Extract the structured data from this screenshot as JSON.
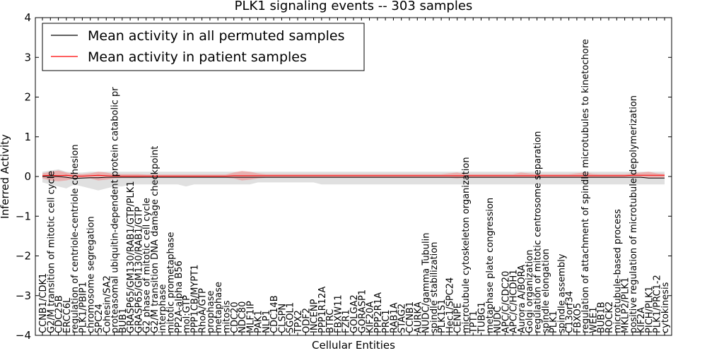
{
  "chart_data": {
    "type": "line",
    "title": "PLK1 signaling events -- 303 samples",
    "xlabel": "Cellular Entities",
    "ylabel": "Inferred Activity",
    "ylim": [
      -4,
      4
    ],
    "yticks": [
      -4,
      -3,
      -2,
      -1,
      0,
      1,
      2,
      3,
      4
    ],
    "grid": false,
    "legend_position": "top-left",
    "categories": [
      "CCNB1/CDK1",
      "G2/M transition of mitotic cell cycle",
      "CDC25B",
      "ERCC6L",
      "regulation of centriole-centriole cohesion",
      "PLK1/PBIP1",
      "chromosome segregation",
      "SPC24",
      "Cohesin/SA2",
      "proteasomal ubiquitin-dependent protein catabolic pr",
      "BUB1",
      "GRASP65/GM130/RAB1/GTP/PLK1",
      "GRASP65/GM130/RAB1/GTP",
      "G2 phase of mitotic cell cycle",
      "G2/M transition DNA damage checkpoint",
      "interphase",
      "mitotic prometaphase",
      "PP2A-alpha B56",
      "mol:GTP",
      "PPP1CB/MYPT1",
      "RhoA/GTP",
      "prophase",
      "metaphase",
      "mitosis",
      "CDC20",
      "NDC80",
      "MLF1IP",
      "PAK1",
      "NLP1",
      "CDC14B",
      "CLSPN",
      "SGOL1",
      "TPX2",
      "ODF2",
      "INCENP",
      "PPP1R12A",
      "BTRC",
      "FBXW11",
      "FZR1",
      "GOLGA2",
      "GORASP1",
      "KIF20A",
      "PPP2R1A",
      "PRC1",
      "RAB1A",
      "STAG2",
      "CCNB1",
      "AURKA",
      "NUDC/gamma Tubulin",
      "spindle stabilization",
      "PLK1S1",
      "Hec1/SPC24",
      "CENPE",
      "microtubule cytoskeleton organization",
      "TPT1",
      "TUBG1",
      "metaphase plate congression",
      "NUDC",
      "APC/C/CDC20",
      "APC/C/HCDH1",
      "Aurora A/BORA",
      "Golgi organization",
      "regulation of mitotic centrosome separation",
      "spindle elongation",
      "PLK1",
      "spindle assembly",
      "C13orf34",
      "FBXO5",
      "regulation of attachment of spindle microtubules to kinetochore",
      "WEE1",
      "BUB1B",
      "ROCK2",
      "microtubule-based process",
      "MKLP2/PLK1",
      "positive regulation of microtubule depolymerization",
      "KIF2A",
      "PICH/PLK1",
      "PLK1/PRC1-2",
      "cytokinesis"
    ],
    "series": [
      {
        "name": "Mean activity in all permuted samples",
        "color": "#000000",
        "values": [
          0,
          0,
          0,
          -0.02,
          -0.05,
          -0.04,
          -0.03,
          -0.03,
          -0.02,
          -0.02,
          -0.02,
          -0.02,
          -0.02,
          -0.02,
          -0.02,
          -0.02,
          -0.02,
          -0.02,
          -0.02,
          -0.02,
          -0.02,
          -0.02,
          -0.02,
          -0.02,
          -0.02,
          -0.02,
          -0.02,
          -0.02,
          -0.02,
          -0.02,
          -0.02,
          -0.02,
          -0.02,
          -0.02,
          -0.02,
          -0.02,
          -0.02,
          -0.02,
          -0.02,
          -0.02,
          -0.02,
          -0.02,
          -0.02,
          -0.02,
          -0.02,
          -0.02,
          -0.02,
          -0.02,
          -0.02,
          -0.02,
          -0.02,
          -0.02,
          -0.02,
          -0.02,
          -0.02,
          -0.02,
          -0.02,
          -0.02,
          -0.02,
          -0.02,
          -0.02,
          -0.02,
          -0.02,
          -0.02,
          -0.02,
          -0.02,
          -0.02,
          -0.02,
          -0.02,
          -0.02,
          -0.02,
          -0.02,
          -0.02,
          -0.02,
          -0.02,
          -0.02,
          -0.04,
          -0.04,
          -0.04
        ],
        "lower": [
          -0.15,
          -0.2,
          -0.25,
          -0.3,
          -0.2,
          -0.25,
          -0.3,
          -0.35,
          -0.3,
          -0.25,
          -0.25,
          -0.2,
          -0.2,
          -0.2,
          -0.2,
          -0.2,
          -0.2,
          -0.2,
          -0.25,
          -0.2,
          -0.2,
          -0.2,
          -0.2,
          -0.2,
          -0.2,
          -0.2,
          -0.2,
          -0.15,
          -0.15,
          -0.15,
          -0.15,
          -0.15,
          -0.15,
          -0.15,
          -0.15,
          -0.2,
          -0.2,
          -0.2,
          -0.2,
          -0.2,
          -0.2,
          -0.2,
          -0.2,
          -0.2,
          -0.2,
          -0.2,
          -0.2,
          -0.2,
          -0.2,
          -0.2,
          -0.2,
          -0.2,
          -0.2,
          -0.2,
          -0.2,
          -0.2,
          -0.2,
          -0.2,
          -0.2,
          -0.2,
          -0.2,
          -0.2,
          -0.2,
          -0.2,
          -0.2,
          -0.2,
          -0.2,
          -0.2,
          -0.2,
          -0.2,
          -0.2,
          -0.2,
          -0.2,
          -0.2,
          -0.2,
          -0.2,
          -0.2,
          -0.2,
          -0.2
        ],
        "upper": [
          0.12,
          0.15,
          0.18,
          0.12,
          0.1,
          0.1,
          0.12,
          0.12,
          0.12,
          0.12,
          0.12,
          0.12,
          0.12,
          0.12,
          0.12,
          0.12,
          0.12,
          0.12,
          0.12,
          0.12,
          0.12,
          0.12,
          0.12,
          0.12,
          0.12,
          0.12,
          0.12,
          0.12,
          0.12,
          0.12,
          0.12,
          0.12,
          0.12,
          0.12,
          0.12,
          0.12,
          0.12,
          0.12,
          0.12,
          0.12,
          0.12,
          0.12,
          0.12,
          0.12,
          0.12,
          0.12,
          0.12,
          0.12,
          0.12,
          0.12,
          0.12,
          0.12,
          0.12,
          0.12,
          0.12,
          0.12,
          0.12,
          0.12,
          0.12,
          0.12,
          0.12,
          0.12,
          0.12,
          0.12,
          0.12,
          0.12,
          0.12,
          0.12,
          0.12,
          0.12,
          0.12,
          0.12,
          0.12,
          0.12,
          0.12,
          0.12,
          0.12,
          0.12,
          0.12
        ],
        "band_color": "#bbbbbb"
      },
      {
        "name": "Mean activity in patient samples",
        "color": "#ff0000",
        "values": [
          0.02,
          0.03,
          0.02,
          0.03,
          0.01,
          0.01,
          0.02,
          0.03,
          0.02,
          0.01,
          0.01,
          0.01,
          0.01,
          0.01,
          0.01,
          0.01,
          0.01,
          0.01,
          0.01,
          0.01,
          0.01,
          0.01,
          0.01,
          0.01,
          0.02,
          0.02,
          0.02,
          0.02,
          0.02,
          0.02,
          0.02,
          0.02,
          0.02,
          0.02,
          0.02,
          0.02,
          0.02,
          0.02,
          0.02,
          0.02,
          0.02,
          0.02,
          0.02,
          0.02,
          0.02,
          0.02,
          0.02,
          0.02,
          0.02,
          0.02,
          0.02,
          0.02,
          0.02,
          0.02,
          0.02,
          0.02,
          0.02,
          0.02,
          0.02,
          0.02,
          0.02,
          0.02,
          0.02,
          0.02,
          0.02,
          0.02,
          0.02,
          0.02,
          0.02,
          0.02,
          0.02,
          0.02,
          0.02,
          0.02,
          0.03,
          0.03,
          0.03,
          0.03,
          0.03
        ],
        "lower": [
          -0.05,
          -0.1,
          -0.12,
          -0.1,
          -0.05,
          -0.05,
          -0.05,
          -0.1,
          -0.08,
          -0.05,
          -0.04,
          -0.04,
          -0.04,
          -0.03,
          -0.03,
          -0.03,
          -0.03,
          -0.03,
          -0.03,
          -0.03,
          -0.03,
          -0.03,
          -0.03,
          -0.03,
          -0.05,
          -0.1,
          -0.08,
          -0.05,
          -0.03,
          -0.03,
          -0.03,
          -0.03,
          -0.03,
          -0.03,
          -0.03,
          -0.03,
          -0.03,
          -0.03,
          -0.03,
          -0.03,
          -0.03,
          -0.03,
          -0.03,
          -0.03,
          -0.03,
          -0.03,
          -0.03,
          -0.03,
          -0.03,
          -0.03,
          -0.03,
          -0.03,
          -0.05,
          -0.03,
          -0.03,
          -0.03,
          -0.03,
          -0.03,
          -0.03,
          -0.03,
          -0.03,
          -0.03,
          -0.03,
          -0.03,
          -0.03,
          -0.03,
          -0.03,
          -0.03,
          -0.03,
          -0.03,
          -0.03,
          -0.03,
          -0.03,
          -0.03,
          -0.03,
          -0.03,
          -0.03,
          -0.03,
          -0.03
        ],
        "upper": [
          0.08,
          0.12,
          0.15,
          0.1,
          0.06,
          0.06,
          0.08,
          0.12,
          0.1,
          0.06,
          0.06,
          0.06,
          0.06,
          0.05,
          0.05,
          0.05,
          0.05,
          0.05,
          0.05,
          0.05,
          0.05,
          0.05,
          0.05,
          0.05,
          0.1,
          0.14,
          0.12,
          0.08,
          0.06,
          0.06,
          0.06,
          0.06,
          0.06,
          0.06,
          0.06,
          0.06,
          0.06,
          0.06,
          0.06,
          0.06,
          0.06,
          0.06,
          0.06,
          0.06,
          0.06,
          0.06,
          0.06,
          0.06,
          0.06,
          0.06,
          0.06,
          0.08,
          0.1,
          0.06,
          0.06,
          0.06,
          0.06,
          0.06,
          0.06,
          0.06,
          0.1,
          0.08,
          0.06,
          0.06,
          0.06,
          0.06,
          0.06,
          0.08,
          0.1,
          0.07,
          0.06,
          0.06,
          0.06,
          0.06,
          0.08,
          0.1,
          0.12,
          0.08,
          0.06
        ],
        "band_color": "#f08080"
      }
    ]
  }
}
